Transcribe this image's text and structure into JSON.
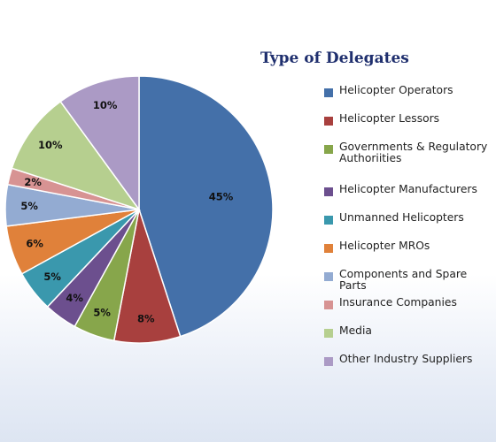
{
  "chart_data": {
    "type": "pie",
    "title": "Type of Delegates",
    "slices": [
      {
        "label": "Helicopter Operators",
        "value": 45,
        "display": "45%",
        "color": "#4470a9"
      },
      {
        "label": "Helicopter Lessors",
        "value": 8,
        "display": "8%",
        "color": "#a8403e"
      },
      {
        "label": "Governments & Regulatory Authoriities",
        "value": 5,
        "display": "5%",
        "color": "#87a64b"
      },
      {
        "label": "Helicopter Manufacturers",
        "value": 4,
        "display": "4%",
        "color": "#6c4f8e"
      },
      {
        "label": "Unmanned Helicopters",
        "value": 5,
        "display": "5%",
        "color": "#3a98ad"
      },
      {
        "label": "Helicopter MROs",
        "value": 6,
        "display": "6%",
        "color": "#e0813a"
      },
      {
        "label": "Components and Spare Parts",
        "value": 5,
        "display": "5%",
        "color": "#93abd2"
      },
      {
        "label": "Insurance Companies",
        "value": 2,
        "display": "2%",
        "color": "#d79393"
      },
      {
        "label": "Media",
        "value": 10,
        "display": "10%",
        "color": "#b6cf8f"
      },
      {
        "label": "Other Industry Suppliers",
        "value": 10,
        "display": "10%",
        "color": "#ab9ac5"
      }
    ],
    "legend_position": "right"
  }
}
